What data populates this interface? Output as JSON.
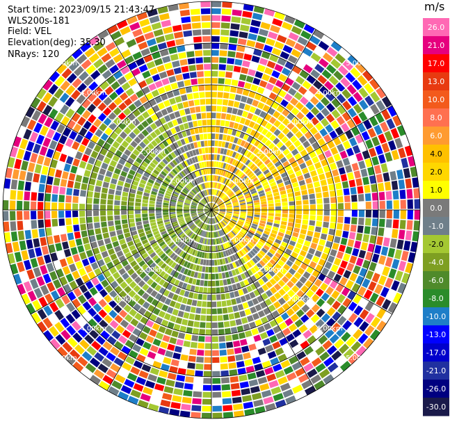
{
  "header": {
    "start_time": "Start time: 2023/09/15 21:43:47",
    "instrument": "WLS200s-181",
    "field": "Field: VEL",
    "elevation": "Elevation(deg): 35.30",
    "nrays": "NRays: 120"
  },
  "chart_data": {
    "type": "heatmap",
    "projection": "polar PPI (azimuth vs range)",
    "nrays": 120,
    "n_range_gates": 30,
    "range_rings_km": [
      "1.00km",
      "2.00km",
      "3.00km",
      "4.00km",
      "5.00km"
    ],
    "ring_label_positions": [
      "NE",
      "NW",
      "SE",
      "SW"
    ],
    "colorbar": {
      "unit": "m/s",
      "tick_labels": [
        "26.0",
        "21.0",
        "17.0",
        "13.0",
        "10.0",
        "8.0",
        "6.0",
        "4.0",
        "2.0",
        "1.0",
        "0.0",
        "-1.0",
        "-2.0",
        "-4.0",
        "-6.0",
        "-8.0",
        "-10.0",
        "-13.0",
        "-17.0",
        "-21.0",
        "-26.0",
        "-30.0"
      ],
      "colors": [
        "#ff69b4",
        "#e6007e",
        "#ff0000",
        "#e83a10",
        "#f35a1c",
        "#ff7050",
        "#ff9b30",
        "#ffc000",
        "#ffd700",
        "#ffff00",
        "#7a7a7a",
        "#6f7f8a",
        "#a4c832",
        "#7e9f22",
        "#4f8a2a",
        "#2a8c2a",
        "#1e7ec8",
        "#0000ff",
        "#0000cc",
        "#2030a0",
        "#000080",
        "#1a1a4a"
      ]
    },
    "pattern": "Near field (~0-3 km): yellow (positive, ~2-4 m/s) toward east/northeast, olive/green (negative, ~-2 to -4 m/s) toward west/southwest, gray near 0 m/s scattered; beyond ~3 km: noisy multicolored gates across full range of values."
  }
}
